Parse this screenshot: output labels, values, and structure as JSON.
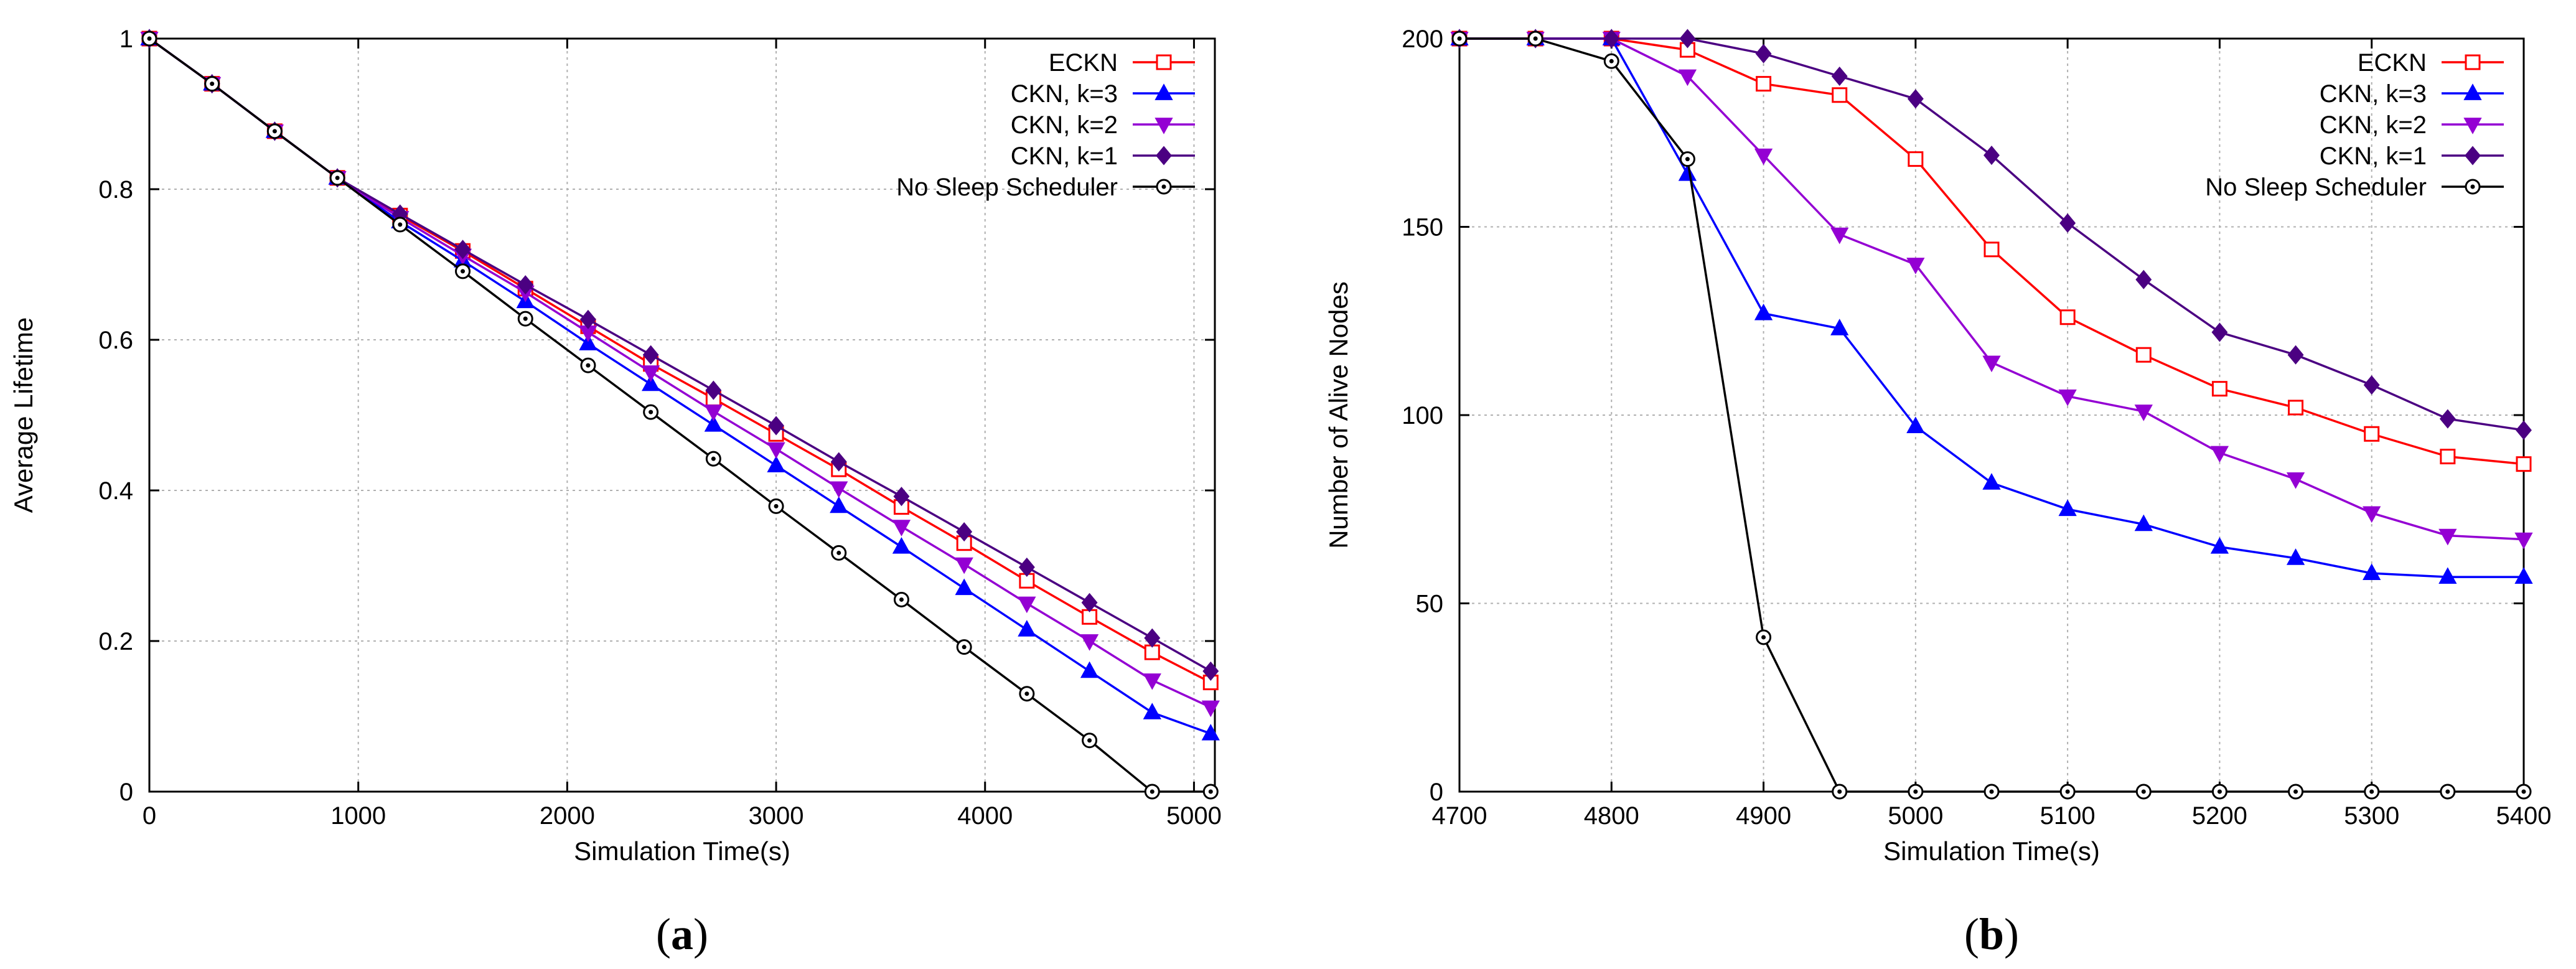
{
  "chart_data": [
    {
      "type": "line",
      "panel_id": "a",
      "panel_label": "a",
      "xlabel": "Simulation Time(s)",
      "ylabel": "Average Lifetime",
      "xlim": [
        0,
        5100
      ],
      "ylim": [
        0,
        1
      ],
      "xticks": [
        0,
        1000,
        2000,
        3000,
        4000,
        5000
      ],
      "yticks": [
        0,
        0.2,
        0.4,
        0.6,
        0.8,
        1
      ],
      "ytick_labels": [
        "0",
        "0.2",
        "0.4",
        "0.6",
        "0.8",
        "1"
      ],
      "grid": true,
      "legend_position": "top-right",
      "x": [
        0,
        300,
        600,
        900,
        1200,
        1500,
        1800,
        2100,
        2400,
        2700,
        3000,
        3300,
        3600,
        3900,
        4200,
        4500,
        4800,
        5080
      ],
      "series": [
        {
          "name": "ECKN",
          "color": "#ff0000",
          "marker": "square",
          "values": [
            1,
            0.94,
            0.877,
            0.815,
            0.765,
            0.718,
            0.668,
            0.618,
            0.568,
            0.522,
            0.475,
            0.428,
            0.378,
            0.33,
            0.28,
            0.232,
            0.185,
            0.145
          ]
        },
        {
          "name": "CKN, k=3",
          "color": "#0000ff",
          "marker": "triangle-up",
          "values": [
            1,
            0.94,
            0.877,
            0.815,
            0.757,
            0.705,
            0.651,
            0.595,
            0.541,
            0.487,
            0.433,
            0.379,
            0.325,
            0.27,
            0.215,
            0.16,
            0.105,
            0.077
          ]
        },
        {
          "name": "CKN, k=2",
          "color": "#9400d3",
          "marker": "triangle-down",
          "values": [
            1,
            0.94,
            0.877,
            0.815,
            0.762,
            0.712,
            0.663,
            0.61,
            0.557,
            0.505,
            0.455,
            0.403,
            0.352,
            0.302,
            0.25,
            0.2,
            0.148,
            0.112
          ]
        },
        {
          "name": "CKN, k=1",
          "color": "#4b0082",
          "marker": "diamond",
          "values": [
            1,
            0.94,
            0.877,
            0.815,
            0.767,
            0.72,
            0.673,
            0.627,
            0.58,
            0.533,
            0.486,
            0.438,
            0.392,
            0.345,
            0.298,
            0.251,
            0.204,
            0.16
          ]
        },
        {
          "name": "No Sleep Scheduler",
          "color": "#000000",
          "marker": "circle",
          "values": [
            1,
            0.94,
            0.877,
            0.815,
            0.753,
            0.691,
            0.628,
            0.566,
            0.504,
            0.442,
            0.379,
            0.317,
            0.255,
            0.192,
            0.13,
            0.068,
            0.0,
            0.0
          ]
        }
      ]
    },
    {
      "type": "line",
      "panel_id": "b",
      "panel_label": "b",
      "xlabel": "Simulation Time(s)",
      "ylabel": "Number of Alive Nodes",
      "xlim": [
        4700,
        5400
      ],
      "ylim": [
        0,
        200
      ],
      "xticks": [
        4700,
        4800,
        4900,
        5000,
        5100,
        5200,
        5300,
        5400
      ],
      "yticks": [
        0,
        50,
        100,
        150,
        200
      ],
      "ytick_labels": [
        "0",
        "50",
        "100",
        "150",
        "200"
      ],
      "grid": true,
      "legend_position": "top-right",
      "x": [
        4700,
        4750,
        4800,
        4850,
        4900,
        4950,
        5000,
        5050,
        5100,
        5150,
        5200,
        5250,
        5300,
        5350,
        5400
      ],
      "series": [
        {
          "name": "ECKN",
          "color": "#ff0000",
          "marker": "square",
          "values": [
            200,
            200,
            200,
            197,
            188,
            185,
            168,
            144,
            126,
            116,
            107,
            102,
            95,
            89,
            87
          ]
        },
        {
          "name": "CKN, k=3",
          "color": "#0000ff",
          "marker": "triangle-up",
          "values": [
            200,
            200,
            200,
            164,
            127,
            123,
            97,
            82,
            75,
            71,
            65,
            62,
            58,
            57,
            57
          ]
        },
        {
          "name": "CKN, k=2",
          "color": "#9400d3",
          "marker": "triangle-down",
          "values": [
            200,
            200,
            200,
            190,
            169,
            148,
            140,
            114,
            105,
            101,
            90,
            83,
            74,
            68,
            67
          ]
        },
        {
          "name": "CKN, k=1",
          "color": "#4b0082",
          "marker": "diamond",
          "values": [
            200,
            200,
            200,
            200,
            196,
            190,
            184,
            169,
            151,
            136,
            122,
            116,
            108,
            99,
            96
          ]
        },
        {
          "name": "No Sleep Scheduler",
          "color": "#000000",
          "marker": "circle",
          "values": [
            200,
            200,
            194,
            168,
            41,
            0,
            0,
            0,
            0,
            0,
            0,
            0,
            0,
            0,
            0
          ]
        }
      ]
    }
  ]
}
